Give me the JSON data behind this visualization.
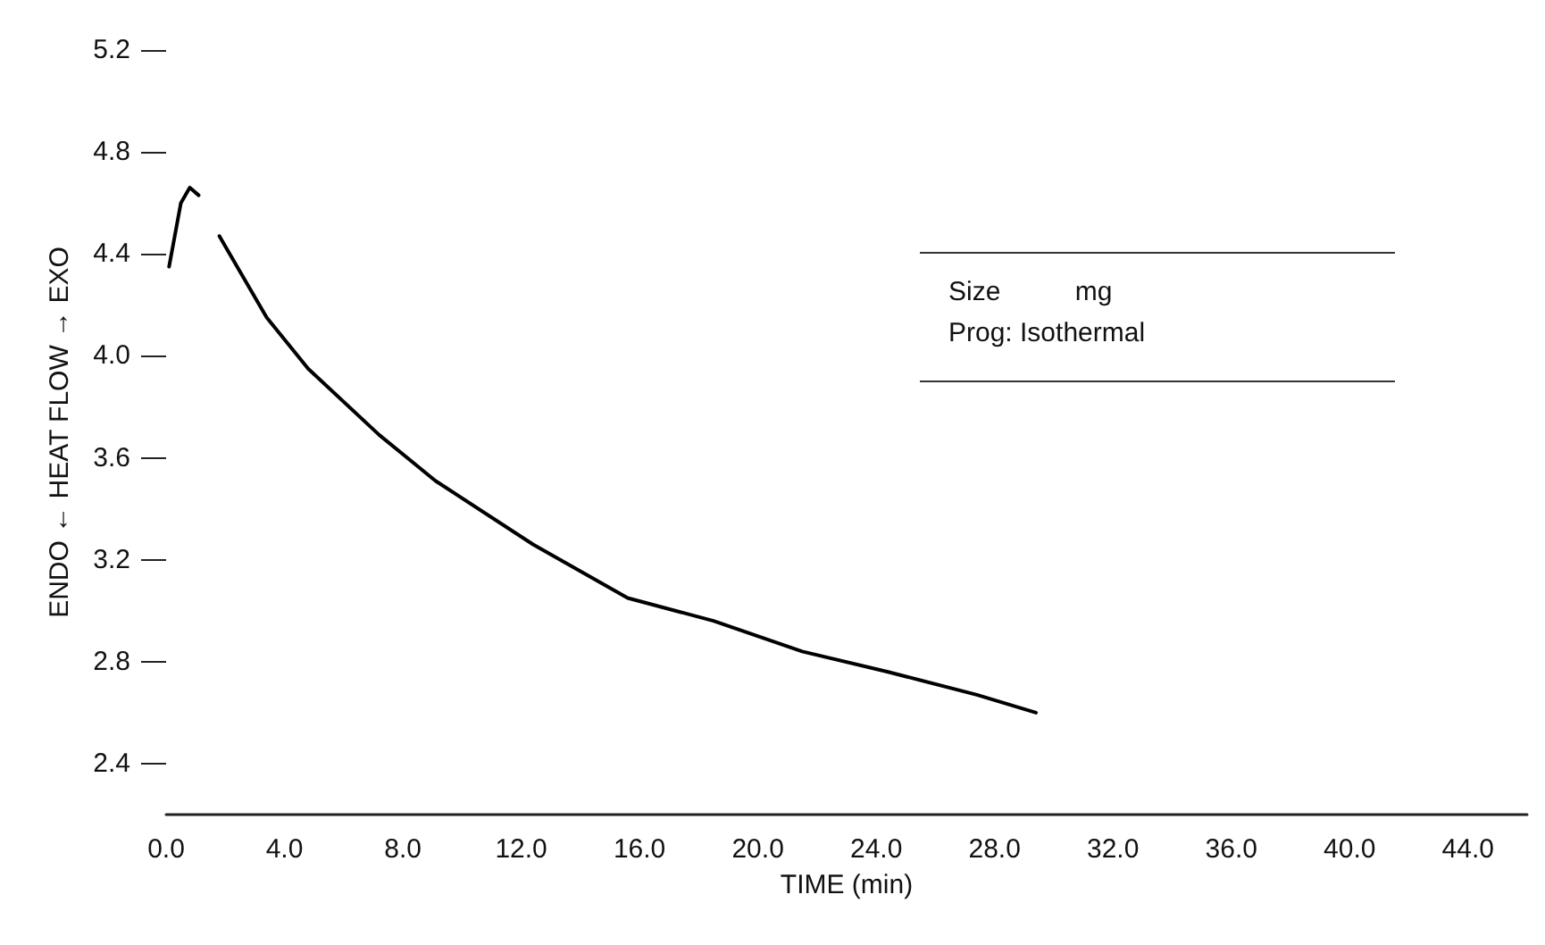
{
  "chart_data": {
    "type": "line",
    "xlabel": "TIME (min)",
    "ylabel": "ENDO ← HEAT FLOW → EXO",
    "annotations": [
      "Size          mg",
      "Prog: Isothermal"
    ],
    "series": [
      {
        "color": "#000000",
        "x": [
          0.1,
          0.5,
          0.8,
          1.1,
          1.5,
          1.8,
          3.4,
          4.8,
          7.2,
          9.1,
          12.4,
          15.6,
          18.5,
          21.5,
          24.4,
          27.4,
          29.4
        ],
        "values": [
          4.35,
          4.6,
          4.66,
          4.63,
          null,
          4.47,
          4.15,
          3.95,
          3.69,
          3.51,
          3.26,
          3.05,
          2.96,
          2.84,
          2.76,
          2.67,
          2.6
        ]
      }
    ],
    "xlim": [
      0,
      46
    ],
    "ylim": [
      2.2,
      5.2
    ],
    "xticks": [
      {
        "value": 0,
        "label": "0.0"
      },
      {
        "value": 4,
        "label": "4.0"
      },
      {
        "value": 8,
        "label": "8.0"
      },
      {
        "value": 12,
        "label": "12.0"
      },
      {
        "value": 16,
        "label": "16.0"
      },
      {
        "value": 20,
        "label": "20.0"
      },
      {
        "value": 24,
        "label": "24.0"
      },
      {
        "value": 28,
        "label": "28.0"
      },
      {
        "value": 32,
        "label": "32.0"
      },
      {
        "value": 36,
        "label": "36.0"
      },
      {
        "value": 40,
        "label": "40.0"
      },
      {
        "value": 44,
        "label": "44.0"
      }
    ],
    "yticks": [
      2.4,
      2.8,
      3.2,
      3.6,
      {
        "value": 4.0,
        "label": "4.0"
      },
      4.4,
      4.8,
      5.2
    ],
    "grid": false,
    "marker": "none",
    "line_style": "solid"
  }
}
